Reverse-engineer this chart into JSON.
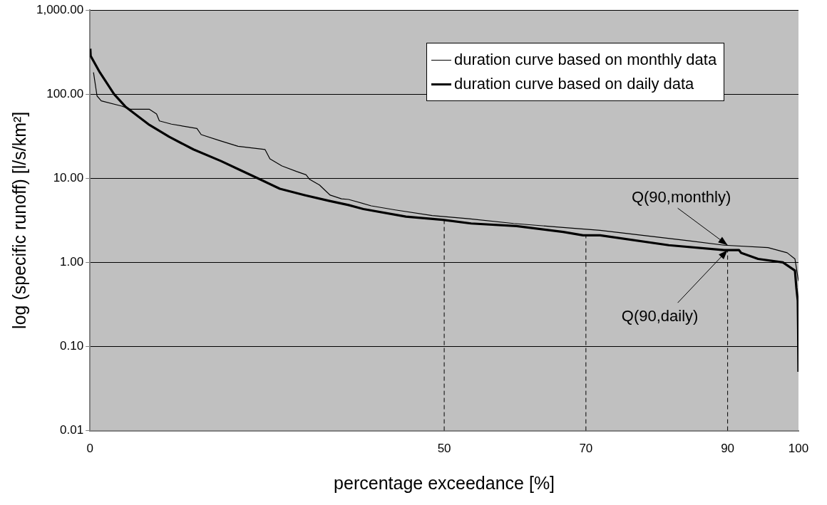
{
  "chart_data": {
    "type": "line",
    "xlabel": "percentage exceedance [%]",
    "ylabel": "log (specific runoff) [l/s/km²]",
    "log": "y",
    "grid": "y",
    "legend": "top right",
    "marker": "none",
    "line_style": "solid",
    "xlim": [
      0,
      100
    ],
    "xticks": [
      0,
      50,
      70,
      90,
      100
    ],
    "ylim": [
      0.01,
      1000
    ],
    "yticks": [
      {
        "value": 0.01,
        "label": "0.01"
      },
      {
        "value": 0.1,
        "label": "0.10"
      },
      {
        "value": 1,
        "label": "1.00"
      },
      {
        "value": 10,
        "label": "10.00"
      },
      {
        "value": 100,
        "label": "100.00"
      },
      {
        "value": 1000,
        "label": "1,000.00"
      }
    ],
    "series": [
      {
        "name": "duration curve based on monthly data",
        "color": "#000000",
        "x": [
          0.5,
          1.0,
          1.6,
          4.5,
          5.7,
          8.4,
          9.4,
          9.8,
          11.5,
          15.1,
          15.7,
          18.3,
          20.9,
          24.7,
          25.4,
          27.1,
          29.2,
          30.5,
          31.0,
          32.4,
          33.9,
          35.5,
          36.5,
          39.7,
          43.1,
          48.3,
          53.5,
          59.8,
          66.8,
          72,
          84.6,
          89.5,
          95.7,
          98.4,
          99.5,
          100
        ],
        "values": [
          181,
          95,
          83,
          72,
          66,
          66,
          58,
          48,
          44,
          39,
          33,
          28,
          24,
          22,
          17,
          14,
          12,
          11,
          9.7,
          8.3,
          6.3,
          5.7,
          5.6,
          4.7,
          4.2,
          3.6,
          3.3,
          2.9,
          2.6,
          2.4,
          1.8,
          1.6,
          1.5,
          1.3,
          1.1,
          0.6
        ]
      },
      {
        "name": "duration curve based on daily data",
        "color": "#000000",
        "x": [
          0.05,
          0.1,
          1.4,
          3.4,
          5.0,
          8.4,
          11.2,
          14.6,
          18.5,
          21.2,
          24.0,
          26.8,
          30.3,
          33.7,
          36.5,
          38.6,
          44.6,
          49.8,
          53.8,
          60.2,
          66.8,
          69.6,
          72,
          81.7,
          89.5,
          91.6,
          91.9,
          94.3,
          97.8,
          99.5,
          99.7,
          99.9,
          99.95,
          100
        ],
        "values": [
          346,
          284,
          181,
          100,
          71,
          43,
          31,
          22,
          16,
          12.5,
          9.7,
          7.5,
          6.3,
          5.4,
          4.8,
          4.3,
          3.5,
          3.2,
          2.9,
          2.7,
          2.3,
          2.1,
          2.1,
          1.6,
          1.4,
          1.4,
          1.3,
          1.1,
          1.0,
          0.8,
          0.5,
          0.35,
          0.16,
          0.05
        ]
      }
    ],
    "ref_lines": [
      {
        "axis": "x",
        "value": 50,
        "line_style": "dashed"
      },
      {
        "axis": "x",
        "value": 70,
        "line_style": "dashed"
      },
      {
        "axis": "x",
        "value": 90,
        "line_style": "dashed"
      }
    ],
    "annotations": [
      {
        "text": "Q(90,monthly)",
        "x": 90,
        "y": 1.6
      },
      {
        "text": "Q(90,daily)",
        "x": 90,
        "y": 1.4
      }
    ]
  }
}
